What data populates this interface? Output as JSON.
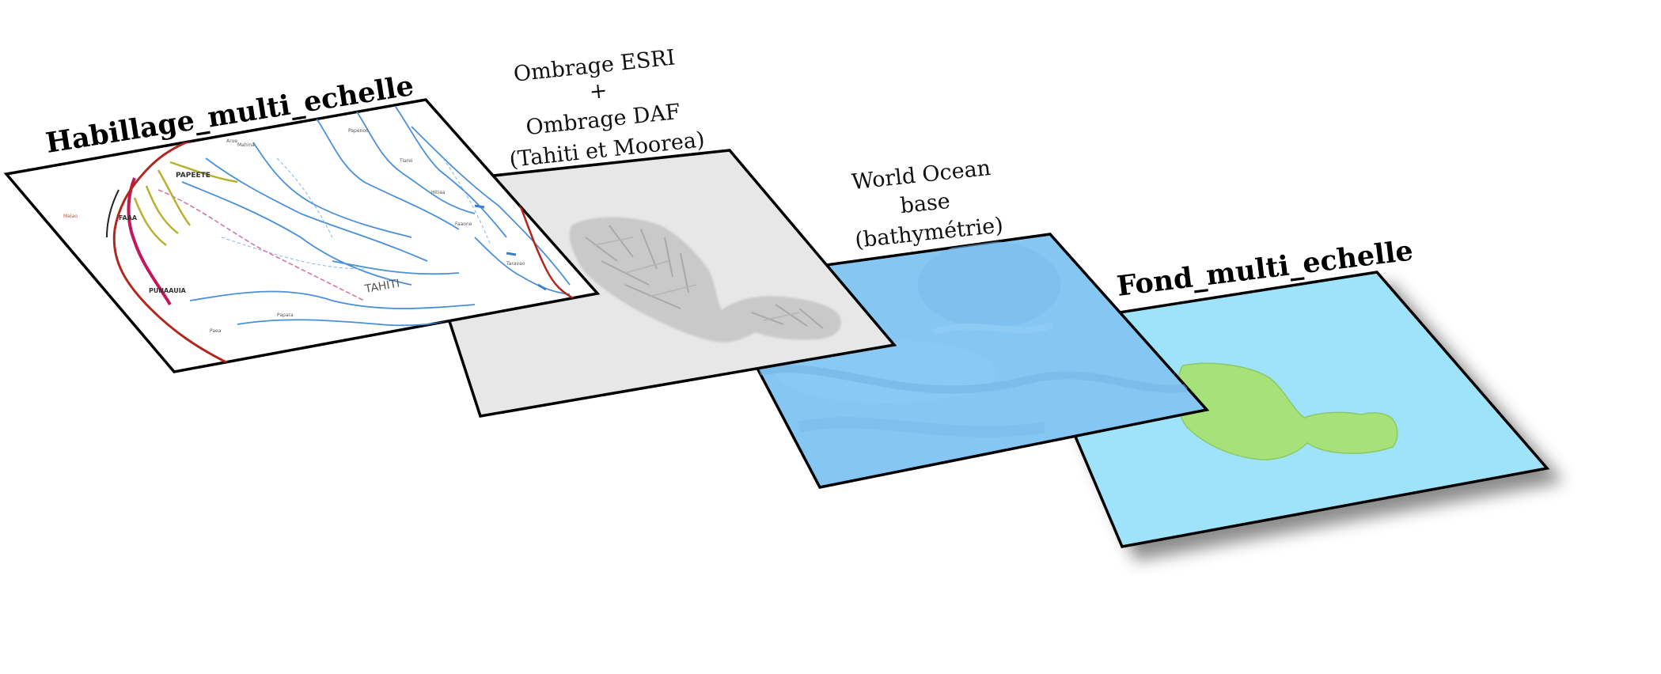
{
  "layers": [
    {
      "id": "habillage",
      "title": "Habillage_multi_echelle",
      "map_labels": [
        "PAPEETE",
        "FAAA",
        "PUNAAUIA",
        "TAHITI",
        "Mahina",
        "Arue",
        "Papenoo",
        "Tiarei",
        "Hitiaa",
        "Faaone",
        "Taravao",
        "Papara",
        "Paea",
        "Maiao"
      ],
      "colors": {
        "fill": "#ffffff",
        "road": "#b3261e",
        "river": "#4a90d9",
        "boundary": "#c2185b"
      }
    },
    {
      "id": "ombrage",
      "title_lines": [
        "Ombrage ESRI",
        "+",
        "Ombrage DAF",
        "(Tahiti et Moorea)"
      ],
      "colors": {
        "fill": "#e7e7e7",
        "relief": "#bdbdbd"
      }
    },
    {
      "id": "world-ocean",
      "title_lines": [
        "World Ocean",
        "base",
        "(bathymétrie)"
      ],
      "colors": {
        "fill": "#86c6f2"
      }
    },
    {
      "id": "fond",
      "title": "Fond_multi_echelle",
      "colors": {
        "fill": "#9fe3fb",
        "land": "#a7e17a",
        "land_stroke": "#8cc864"
      }
    }
  ]
}
